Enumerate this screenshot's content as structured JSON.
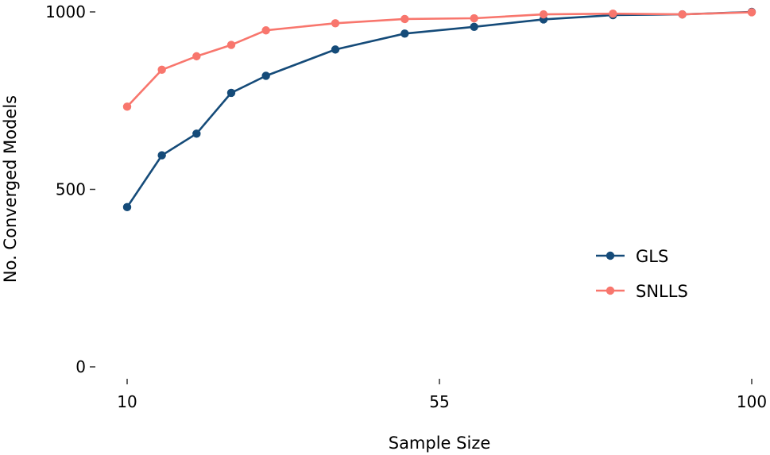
{
  "chart_data": {
    "type": "line",
    "title": "",
    "xlabel": "Sample Size",
    "ylabel": "No. Converged Models",
    "xlim": [
      10,
      100
    ],
    "ylim": [
      0,
      1000
    ],
    "x_ticks": [
      10,
      55,
      100
    ],
    "y_ticks": [
      0,
      500,
      1000
    ],
    "x_tick_labels": [
      "10",
      "55",
      "100"
    ],
    "y_tick_labels": [
      "0",
      "500",
      "1000"
    ],
    "grid": false,
    "legend_position": "right",
    "series": [
      {
        "name": "GLS",
        "color": "#154b79",
        "x": [
          10,
          15,
          20,
          25,
          30,
          40,
          50,
          60,
          70,
          80,
          90,
          100
        ],
        "y": [
          450,
          596,
          657,
          772,
          820,
          894,
          939,
          958,
          979,
          991,
          993,
          1000
        ]
      },
      {
        "name": "SNLLS",
        "color": "#f8766d",
        "x": [
          10,
          15,
          20,
          25,
          30,
          40,
          50,
          60,
          70,
          80,
          90,
          100
        ],
        "y": [
          733,
          837,
          875,
          907,
          948,
          968,
          980,
          982,
          993,
          995,
          993,
          999
        ]
      }
    ]
  }
}
